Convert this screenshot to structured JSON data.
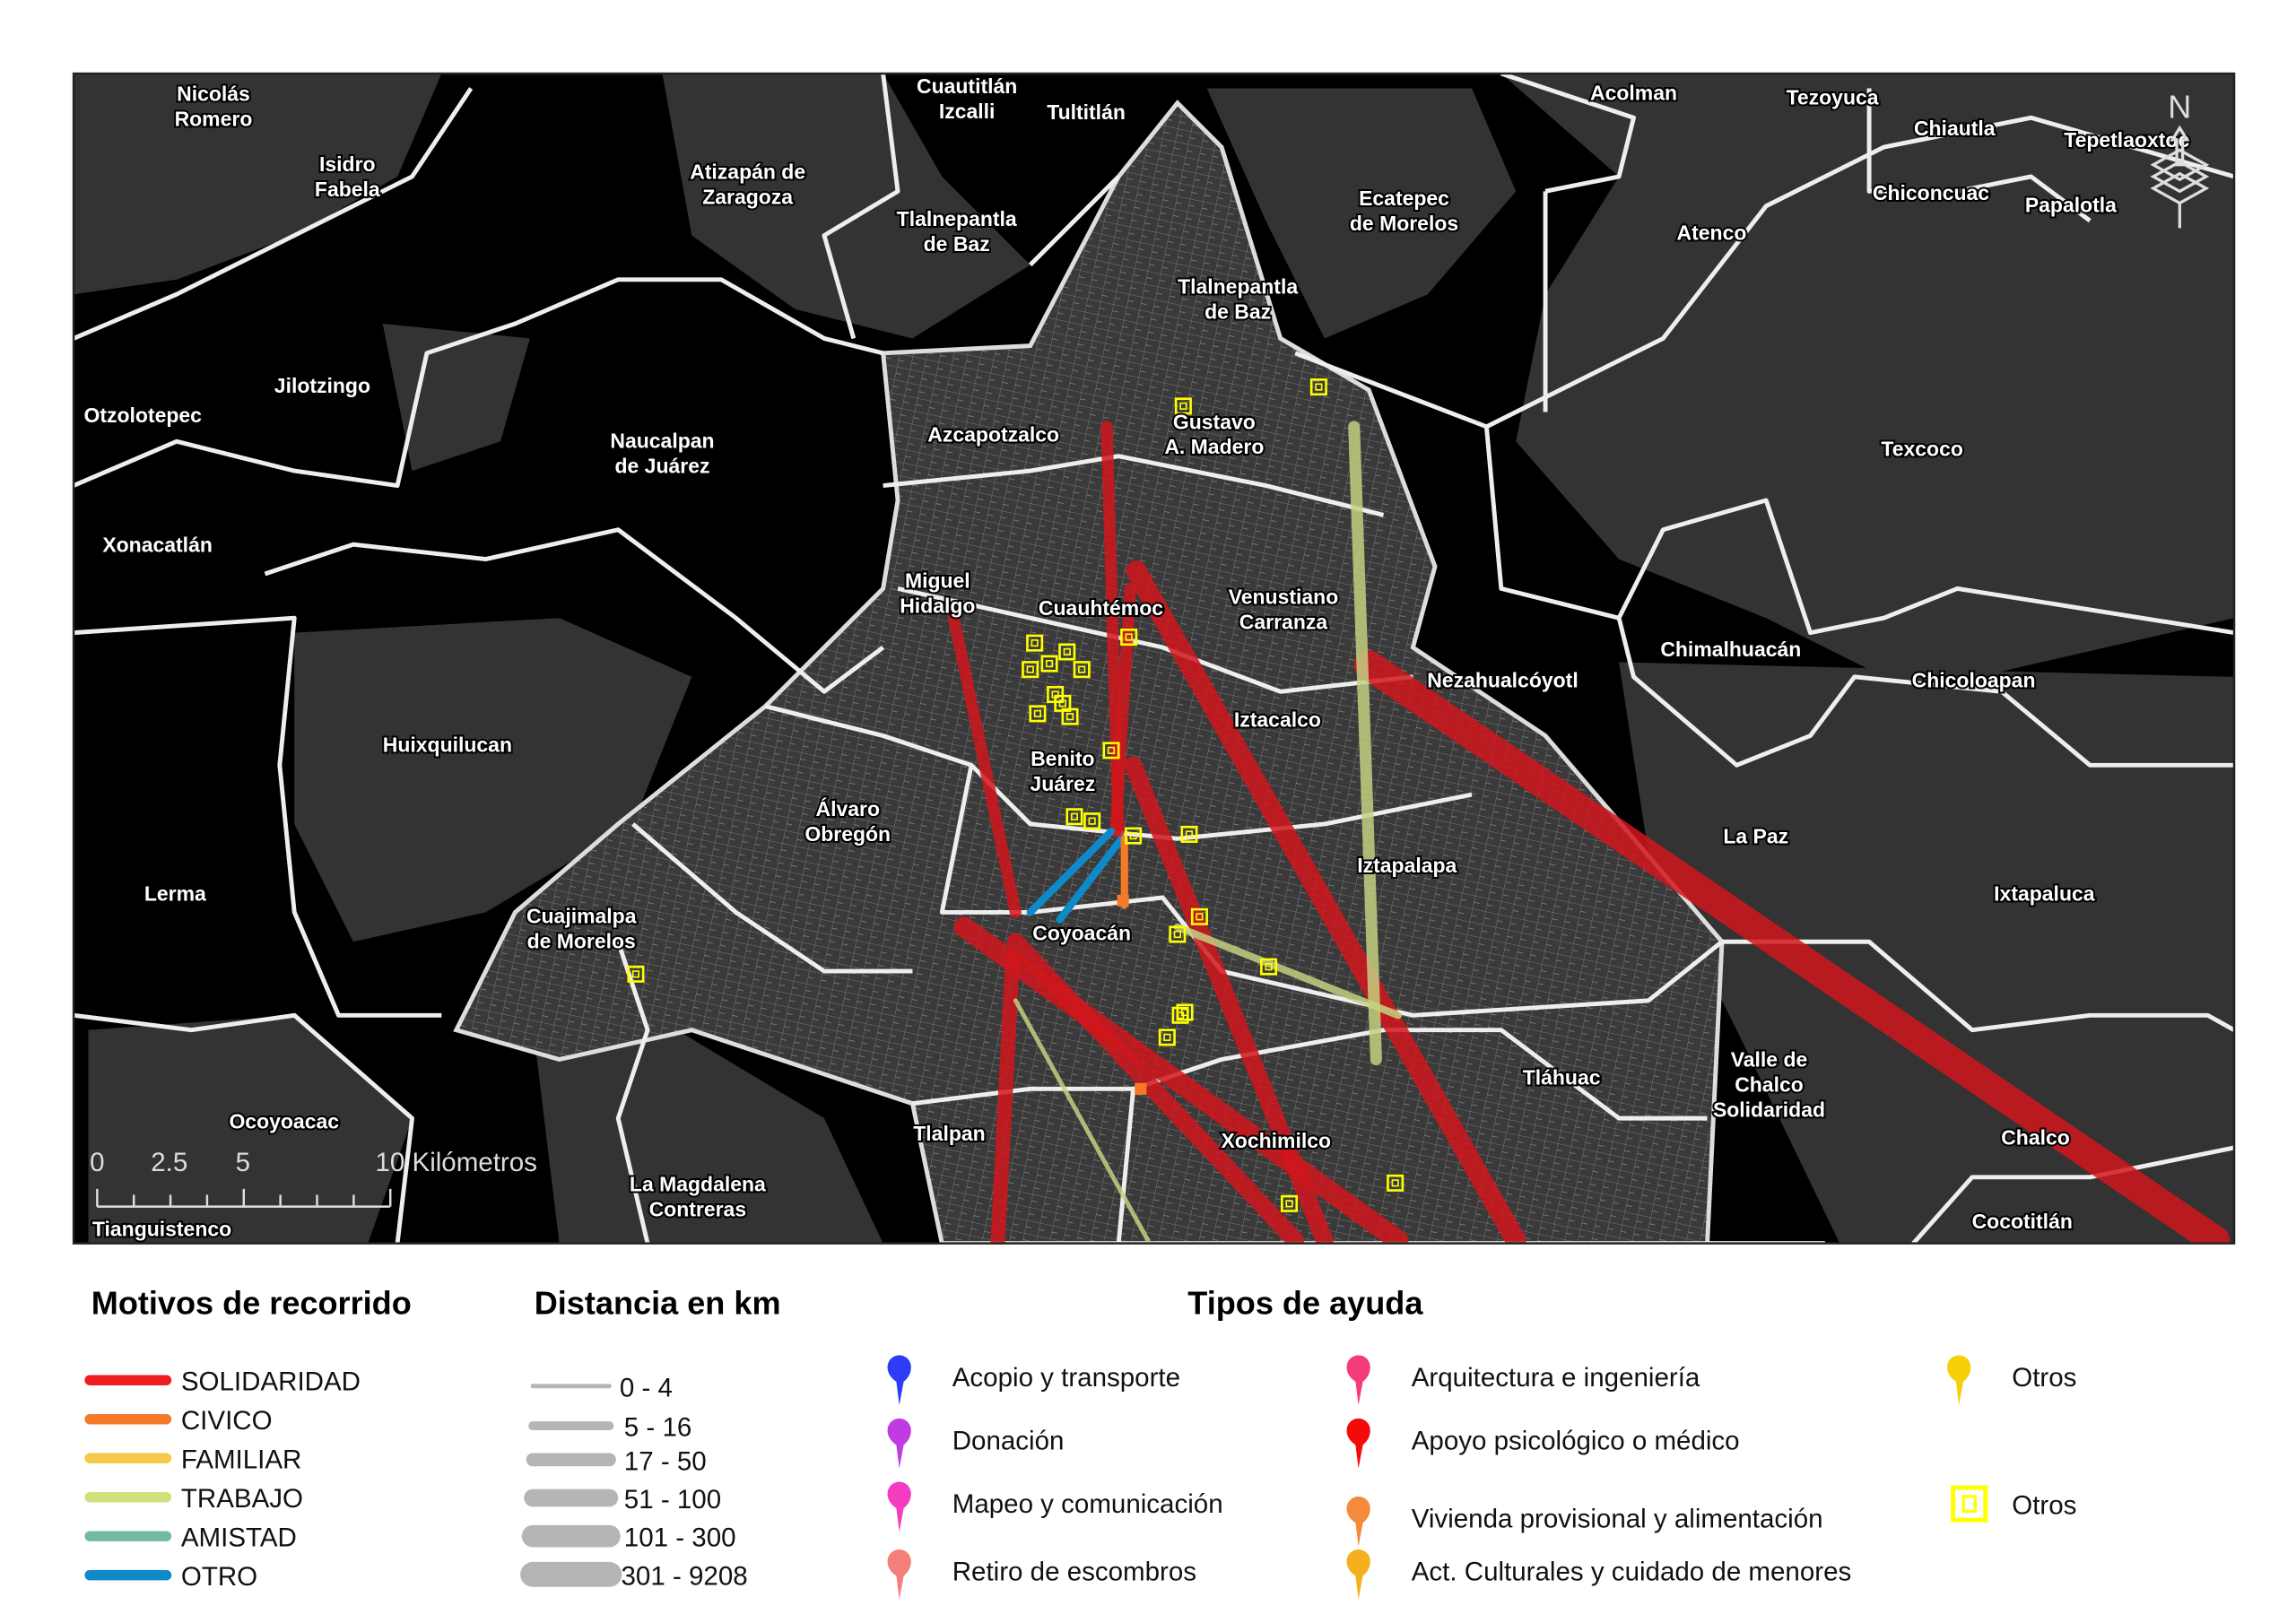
{
  "map": {
    "north_label": "N",
    "scale_bar": {
      "ticks": [
        "0",
        "2.5",
        "5",
        "10 Kilómetros"
      ]
    },
    "place_labels": [
      {
        "lines": [
          "Nicolás",
          "Romero"
        ]
      },
      {
        "lines": [
          "Isidro",
          "Fabela"
        ]
      },
      {
        "lines": [
          "Atizapán de",
          "Zaragoza"
        ]
      },
      {
        "lines": [
          "Cuautitlán",
          "Izcalli"
        ]
      },
      {
        "lines": [
          "Tultitlán"
        ]
      },
      {
        "lines": [
          "Acolman"
        ]
      },
      {
        "lines": [
          "Tezoyuca"
        ]
      },
      {
        "lines": [
          "Chiautla"
        ]
      },
      {
        "lines": [
          "Tepetlaoxtoc"
        ]
      },
      {
        "lines": [
          "Chiconcuac"
        ]
      },
      {
        "lines": [
          "Papalotla"
        ]
      },
      {
        "lines": [
          "Atenco"
        ]
      },
      {
        "lines": [
          "Ecatepec",
          "de Morelos"
        ]
      },
      {
        "lines": [
          "Tlalnepantla",
          "de Baz"
        ]
      },
      {
        "lines": [
          "Tlalnepantla",
          "de Baz"
        ]
      },
      {
        "lines": [
          "Jilotzingo"
        ]
      },
      {
        "lines": [
          "Otzolotepec"
        ]
      },
      {
        "lines": [
          "Naucalpan",
          "de Juárez"
        ]
      },
      {
        "lines": [
          "Azcapotzalco"
        ]
      },
      {
        "lines": [
          "Gustavo",
          "A. Madero"
        ]
      },
      {
        "lines": [
          "Texcoco"
        ]
      },
      {
        "lines": [
          "Xonacatlán"
        ]
      },
      {
        "lines": [
          "Miguel",
          "Hidalgo"
        ]
      },
      {
        "lines": [
          "Cuauhtémoc"
        ]
      },
      {
        "lines": [
          "Venustiano",
          "Carranza"
        ]
      },
      {
        "lines": [
          "Chimalhuacán"
        ]
      },
      {
        "lines": [
          "Nezahualcóyotl"
        ]
      },
      {
        "lines": [
          "Chicoloapan"
        ]
      },
      {
        "lines": [
          "Iztacalco"
        ]
      },
      {
        "lines": [
          "Huixquilucan"
        ]
      },
      {
        "lines": [
          "Benito",
          "Juárez"
        ]
      },
      {
        "lines": [
          "Álvaro",
          "Obregón"
        ]
      },
      {
        "lines": [
          "La Paz"
        ]
      },
      {
        "lines": [
          "Iztapalapa"
        ]
      },
      {
        "lines": [
          "Lerma"
        ]
      },
      {
        "lines": [
          "Ixtapaluca"
        ]
      },
      {
        "lines": [
          "Cuajimalpa",
          "de Morelos"
        ]
      },
      {
        "lines": [
          "Coyoacán"
        ]
      },
      {
        "lines": [
          "Valle de",
          "Chalco",
          "Solidaridad"
        ]
      },
      {
        "lines": [
          "Tláhuac"
        ]
      },
      {
        "lines": [
          "Ocoyoacac"
        ]
      },
      {
        "lines": [
          "Tlalpan"
        ]
      },
      {
        "lines": [
          "Xochimilco"
        ]
      },
      {
        "lines": [
          "Chalco"
        ]
      },
      {
        "lines": [
          "La Magdalena",
          "Contreras"
        ]
      },
      {
        "lines": [
          "Tianguistenco"
        ]
      },
      {
        "lines": [
          "Cocotitlán"
        ]
      }
    ],
    "colors": {
      "background": "#000000",
      "land": "#333333",
      "urban": "#3a3a3a",
      "boundary": "#eeeeee"
    }
  },
  "legend": {
    "motivos": {
      "title": "Motivos de recorrido",
      "items": [
        {
          "label": "SOLIDARIDAD",
          "color": "#ee1c1c"
        },
        {
          "label": "CIVICO",
          "color": "#f47a2a"
        },
        {
          "label": "FAMILIAR",
          "color": "#f7c948"
        },
        {
          "label": "TRABAJO",
          "color": "#cfe07c"
        },
        {
          "label": "AMISTAD",
          "color": "#72b9a0"
        },
        {
          "label": "OTRO",
          "color": "#0e8ac8"
        }
      ]
    },
    "distancia": {
      "title": "Distancia en km",
      "items": [
        {
          "label": "0 - 4"
        },
        {
          "label": "5 - 16"
        },
        {
          "label": "17 - 50"
        },
        {
          "label": "51 - 100"
        },
        {
          "label": "101 - 300"
        },
        {
          "label": "301 - 9208"
        }
      ],
      "color": "#b5b5b5"
    },
    "tipos": {
      "title": "Tipos de ayuda",
      "items": [
        {
          "label": "Acopio y transporte",
          "color": "#2f3cf5",
          "icon": "map-pin-icon"
        },
        {
          "label": "Donación",
          "color": "#c03ce0",
          "icon": "map-pin-icon"
        },
        {
          "label": "Mapeo y comunicación",
          "color": "#f53cc0",
          "icon": "map-pin-icon"
        },
        {
          "label": "Retiro de escombros",
          "color": "#f47f7a",
          "icon": "map-pin-icon"
        },
        {
          "label": "Arquitectura e ingeniería",
          "color": "#f53c7a",
          "icon": "map-pin-icon"
        },
        {
          "label": "Apoyo psicológico o médico",
          "color": "#f50a0a",
          "icon": "map-pin-icon"
        },
        {
          "label": "Vivienda provisional y alimentación",
          "color": "#f48a3c",
          "icon": "map-pin-icon"
        },
        {
          "label": "Act. Culturales y cuidado de menores",
          "color": "#f5b01e",
          "icon": "map-pin-icon"
        },
        {
          "label": "Otros",
          "color": "#f5d00a",
          "icon": "map-pin-icon"
        },
        {
          "label": "Otros",
          "color": "#ffff00",
          "icon": "square-target-icon"
        }
      ]
    }
  }
}
